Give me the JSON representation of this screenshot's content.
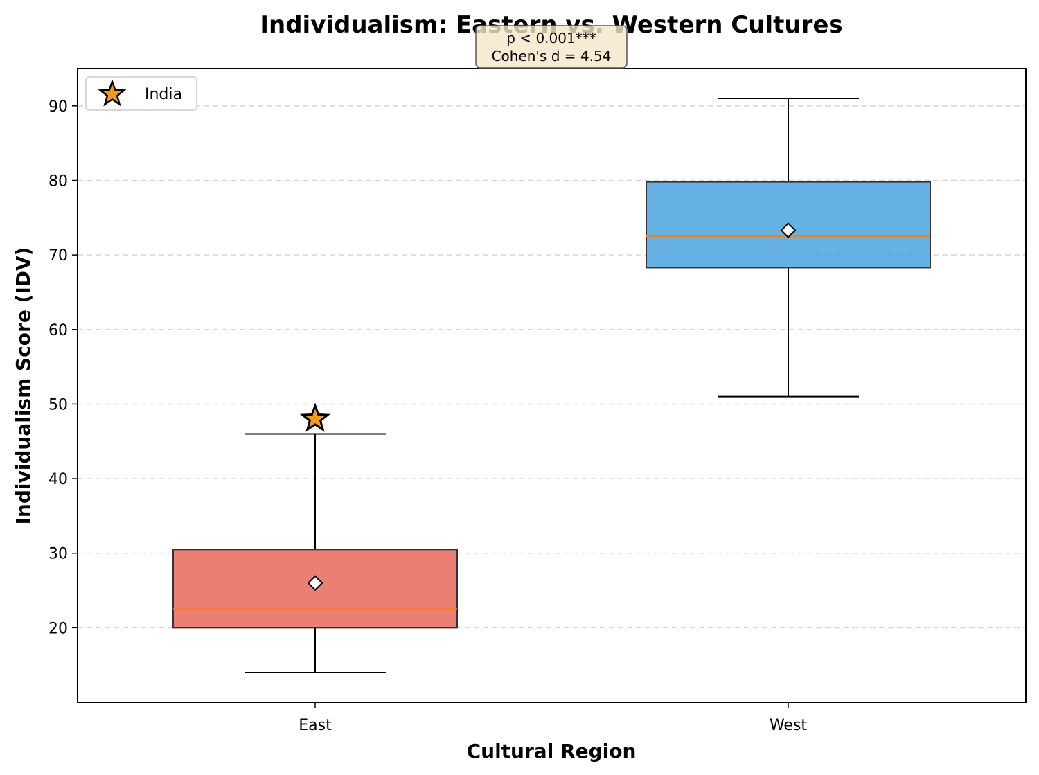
{
  "chart_data": {
    "type": "box",
    "title": "Individualism: Eastern vs. Western Cultures",
    "xlabel": "Cultural Region",
    "ylabel": "Individualism Score (IDV)",
    "ylim": [
      10,
      95
    ],
    "yticks": [
      20,
      30,
      40,
      50,
      60,
      70,
      80,
      90
    ],
    "grid": "y, dashed",
    "categories": [
      "East",
      "West"
    ],
    "boxes": [
      {
        "category": "East",
        "whisker_low": 14,
        "q1": 20,
        "median": 22.5,
        "q3": 30.5,
        "whisker_high": 46,
        "mean": 26,
        "color": "#e8685a"
      },
      {
        "category": "West",
        "whisker_low": 51,
        "q1": 68.3,
        "median": 72.5,
        "q3": 79.8,
        "whisker_high": 91,
        "mean": 73.3,
        "color": "#4aa3de"
      }
    ],
    "highlight": {
      "label": "India",
      "category": "East",
      "value": 48,
      "color": "#f39c12"
    },
    "annotation": {
      "lines": [
        "p < 0.001***",
        "Cohen's d = 4.54"
      ]
    },
    "legend": {
      "placement": "top-left",
      "entries": [
        "India"
      ]
    },
    "median_color": "#ff7f0e"
  }
}
